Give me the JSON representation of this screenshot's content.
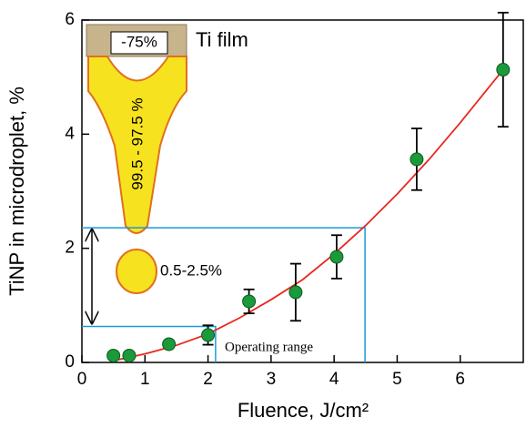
{
  "chart_data": {
    "type": "scatter",
    "x_label": "Fluence, J/cm²",
    "y_label": "TiNP in microdroplet, %",
    "xlim": [
      0,
      7
    ],
    "xticks": [
      0,
      1,
      2,
      3,
      4,
      5,
      6
    ],
    "ylim": [
      0,
      6
    ],
    "yticks": [
      0,
      2,
      4,
      6
    ],
    "series": [
      {
        "type": "scatter",
        "color": "#1a9a3a",
        "x": [
          0.5,
          0.75,
          1.38,
          2.0,
          2.65,
          3.39,
          4.04,
          5.31,
          6.68
        ],
        "values": [
          0.12,
          0.12,
          0.32,
          0.48,
          1.07,
          1.23,
          1.85,
          3.56,
          5.13
        ],
        "errors": [
          null,
          null,
          null,
          0.17,
          0.21,
          0.5,
          0.38,
          0.54,
          1.0
        ]
      },
      {
        "type": "line",
        "color": "#e8281e",
        "x": [
          0.5,
          1,
          1.5,
          2,
          2.5,
          3,
          3.5,
          4,
          4.5,
          5,
          5.5,
          6,
          6.68
        ],
        "values": [
          0.03,
          0.15,
          0.3,
          0.5,
          0.78,
          1.1,
          1.45,
          1.9,
          2.4,
          2.95,
          3.55,
          4.2,
          5.13
        ]
      }
    ],
    "reference_lines": [
      {
        "color": "#1a9ad6",
        "x": [
          0,
          4.49,
          4.49
        ],
        "values": [
          2.36,
          2.36,
          0
        ]
      },
      {
        "color": "#1a9ad6",
        "x": [
          0,
          2.12,
          2.12
        ],
        "values": [
          0.63,
          0.63,
          0
        ]
      }
    ],
    "annotations": [
      "-75%",
      "Ti film",
      "99.5 - 97.5 %",
      "0.5-2.5%",
      "Operating range"
    ]
  }
}
